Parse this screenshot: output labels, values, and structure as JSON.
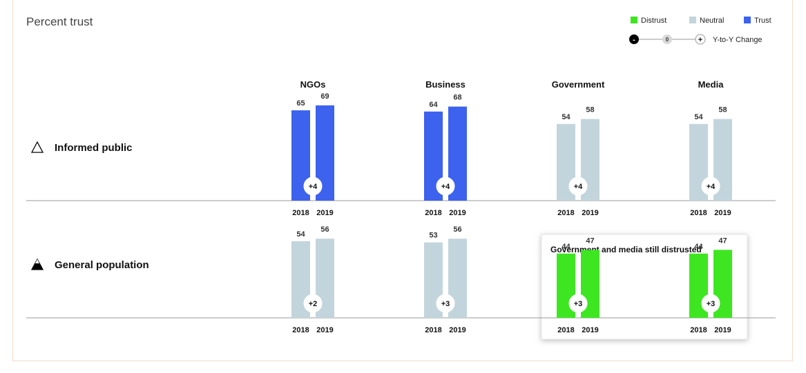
{
  "chart_data": {
    "type": "bar",
    "title": "Percent trust",
    "legend": {
      "entries": [
        {
          "label": "Distrust",
          "color": "#3ee622"
        },
        {
          "label": "Neutral",
          "color": "#c3d5dc"
        },
        {
          "label": "Trust",
          "color": "#3c62ee"
        }
      ],
      "change_key": {
        "minus": "-",
        "zero": "0",
        "plus": "+",
        "label": "Y-to-Y Change"
      },
      "placement": "top-right"
    },
    "categories": [
      "NGOs",
      "Business",
      "Government",
      "Media"
    ],
    "years": [
      "2018",
      "2019"
    ],
    "rows": [
      {
        "label": "Informed public",
        "groups": [
          {
            "values": [
              65,
              69
            ],
            "change": "+4",
            "level": "Trust"
          },
          {
            "values": [
              64,
              68
            ],
            "change": "+4",
            "level": "Trust"
          },
          {
            "values": [
              54,
              58
            ],
            "change": "+4",
            "level": "Neutral"
          },
          {
            "values": [
              54,
              58
            ],
            "change": "+4",
            "level": "Neutral"
          }
        ]
      },
      {
        "label": "General population",
        "groups": [
          {
            "values": [
              54,
              56
            ],
            "change": "+2",
            "level": "Neutral"
          },
          {
            "values": [
              53,
              56
            ],
            "change": "+3",
            "level": "Neutral"
          },
          {
            "values": [
              44,
              47
            ],
            "change": "+3",
            "level": "Distrust"
          },
          {
            "values": [
              44,
              47
            ],
            "change": "+3",
            "level": "Distrust"
          }
        ]
      }
    ],
    "callout": "Government and media still distrusted",
    "colors": {
      "Trust": "#3c62ee",
      "Neutral": "#c3d5dc",
      "Distrust": "#3ee622"
    }
  }
}
